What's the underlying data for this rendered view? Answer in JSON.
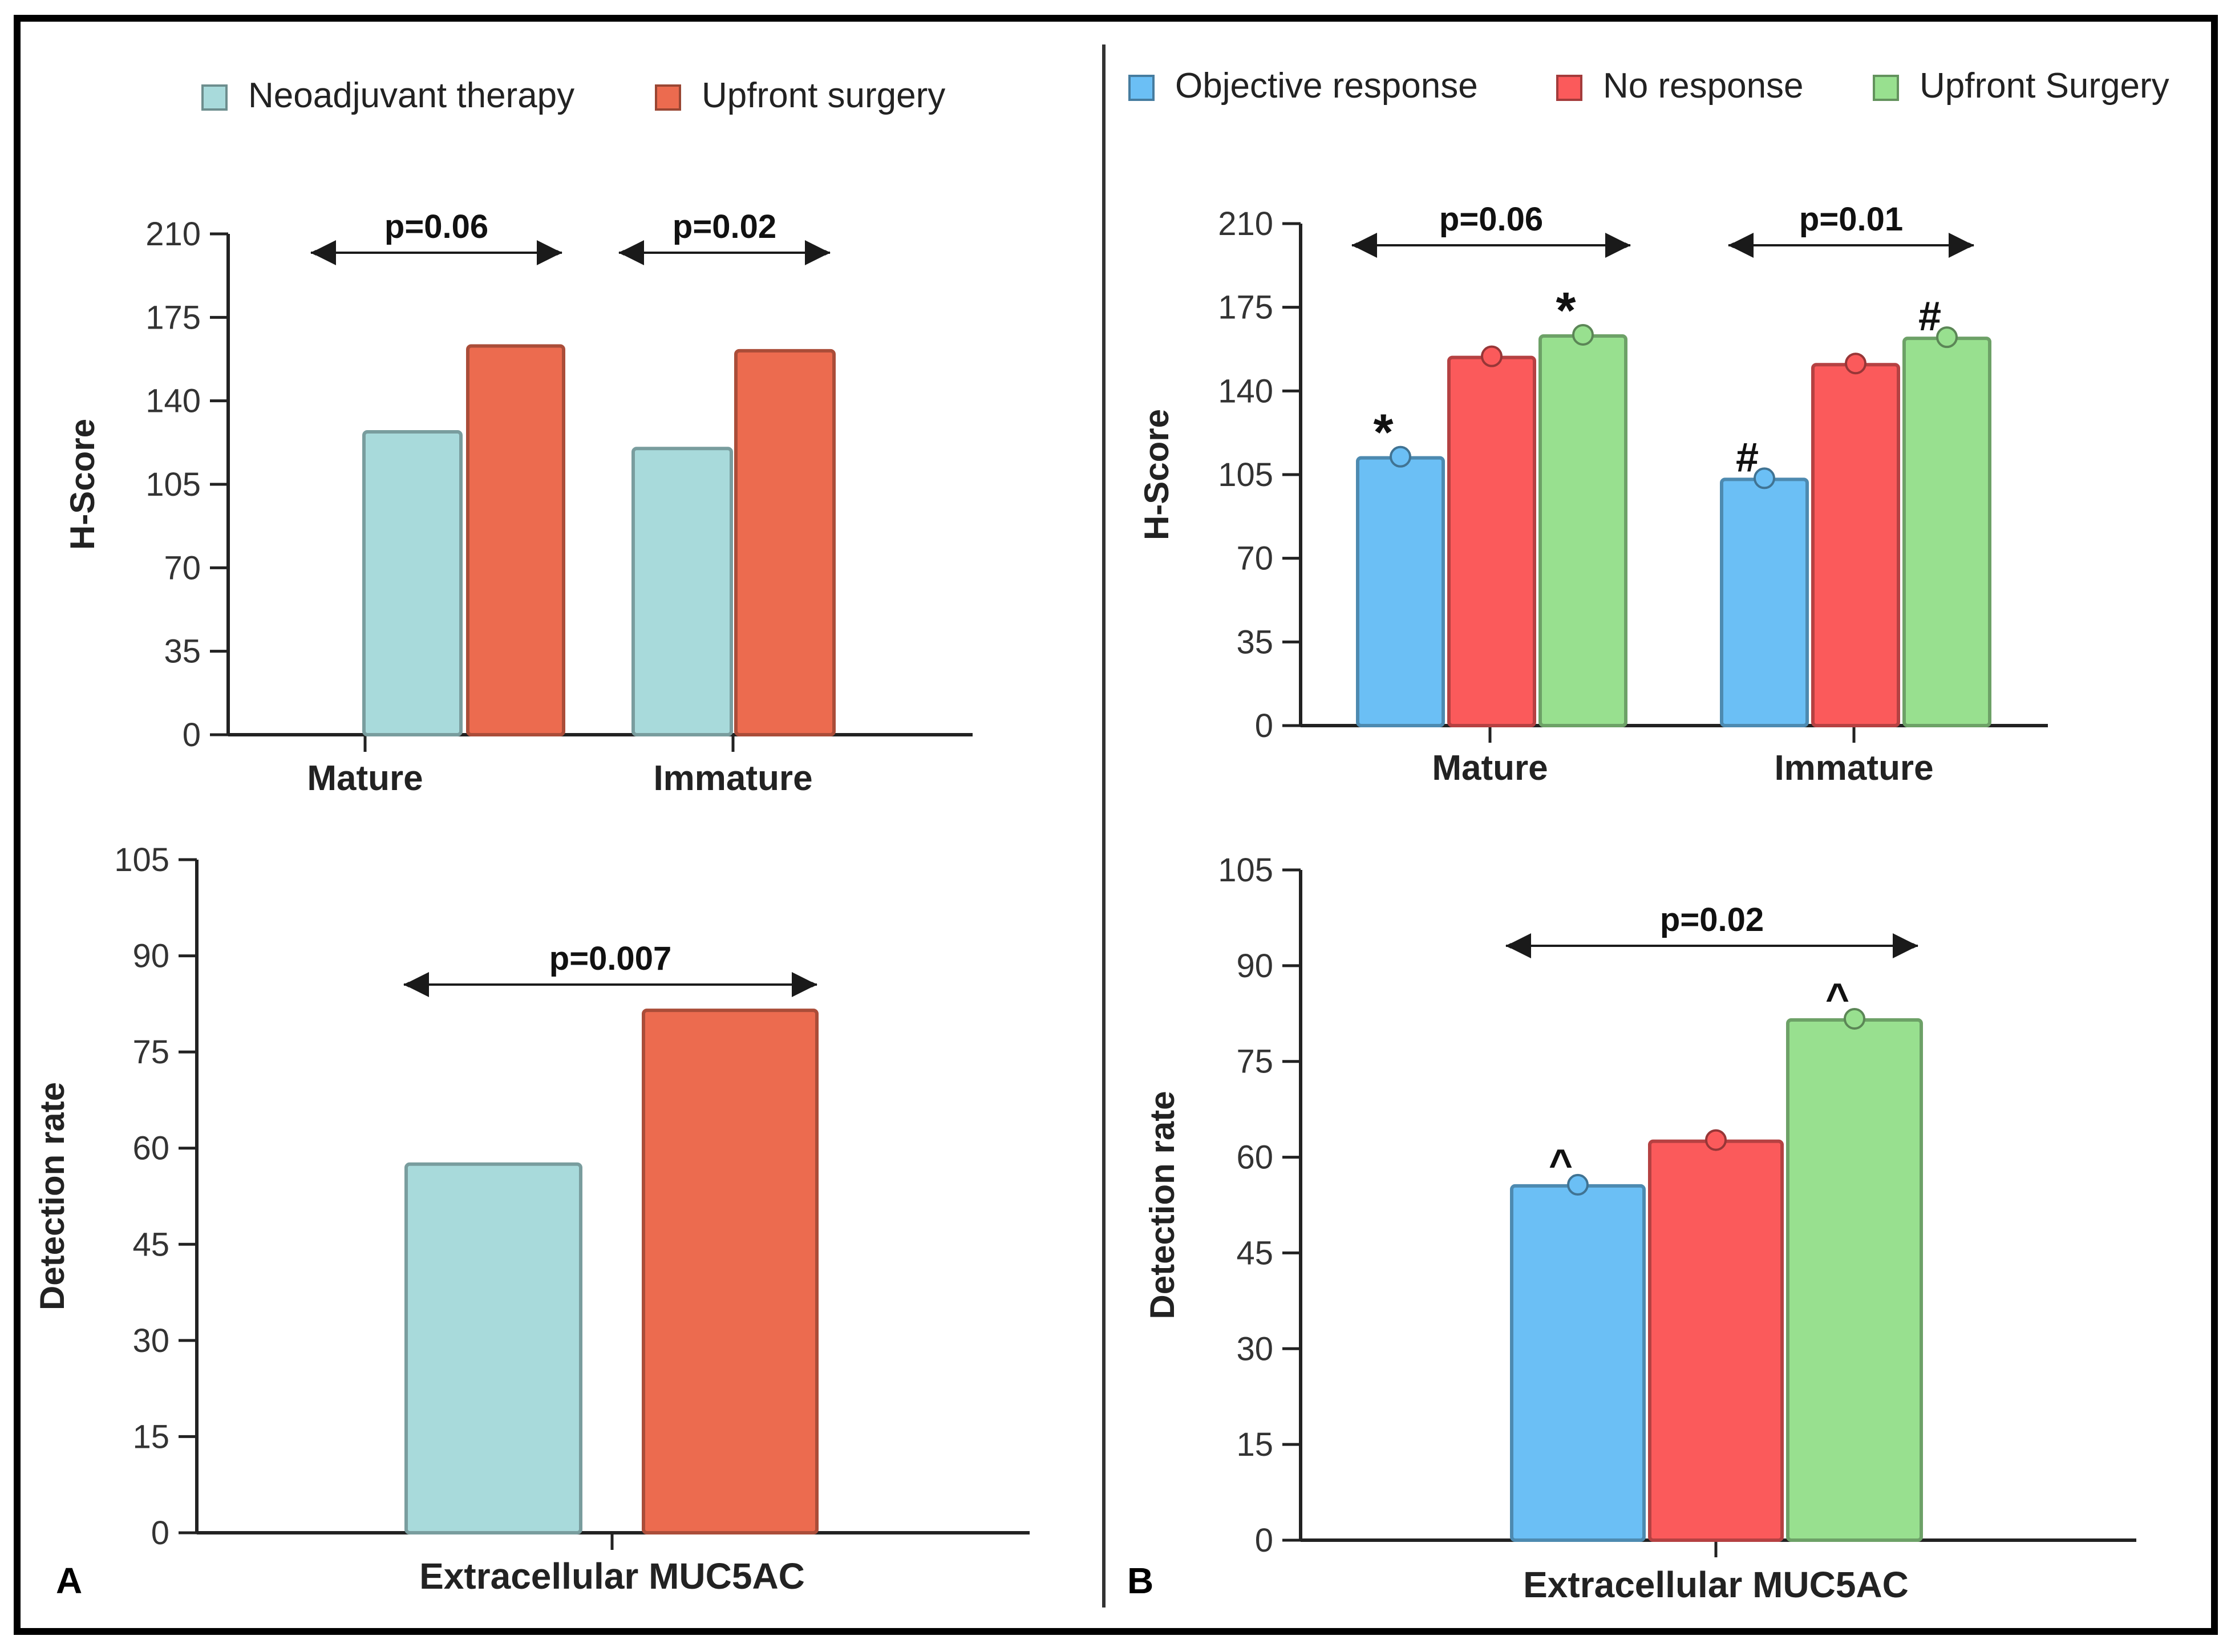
{
  "colors": {
    "neo": "#a8dadb",
    "upfront_a": "#ec6b4f",
    "objective": "#6bbff5",
    "noresp": "#fb5a5b",
    "upfront_b": "#98e08f",
    "frame": "#000000"
  },
  "panel_a": {
    "label": "A",
    "legend": [
      "Neoadjuvant therapy",
      "Upfront surgery"
    ]
  },
  "panel_b": {
    "label": "B",
    "legend": [
      "Objective response",
      "No response",
      "Upfront Surgery"
    ]
  },
  "chart_data": [
    {
      "id": "a_top",
      "type": "bar",
      "title": "",
      "xlabel": "",
      "ylabel": "H-Score",
      "ylim": [
        0,
        210
      ],
      "yticks": [
        0,
        35,
        70,
        105,
        140,
        175,
        210
      ],
      "categories": [
        "Mature",
        "Immature"
      ],
      "series": [
        {
          "name": "Neoadjuvant therapy",
          "values": [
            127,
            120
          ]
        },
        {
          "name": "Upfront surgery",
          "values": [
            163,
            161
          ]
        }
      ],
      "annotations": [
        {
          "text": "p=0.06",
          "category": "Mature"
        },
        {
          "text": "p=0.02",
          "category": "Immature"
        }
      ]
    },
    {
      "id": "a_bottom",
      "type": "bar",
      "title": "",
      "xlabel": "Extracellular MUC5AC",
      "ylabel": "Detection rate",
      "ylim": [
        0,
        105
      ],
      "yticks": [
        0,
        15,
        30,
        45,
        60,
        75,
        90,
        105
      ],
      "categories": [
        "Extracellular MUC5AC"
      ],
      "series": [
        {
          "name": "Neoadjuvant therapy",
          "values": [
            57.5
          ]
        },
        {
          "name": "Upfront surgery",
          "values": [
            81.5
          ]
        }
      ],
      "annotations": [
        {
          "text": "p=0.007",
          "category": "Extracellular MUC5AC"
        }
      ]
    },
    {
      "id": "b_top",
      "type": "bar",
      "title": "",
      "xlabel": "",
      "ylabel": "H-Score",
      "ylim": [
        0,
        210
      ],
      "yticks": [
        0,
        35,
        70,
        105,
        140,
        175,
        210
      ],
      "categories": [
        "Mature",
        "Immature"
      ],
      "series": [
        {
          "name": "Objective response",
          "values": [
            112,
            103
          ],
          "markers": [
            "*",
            "#"
          ]
        },
        {
          "name": "No response",
          "values": [
            154,
            151
          ],
          "markers": [
            "",
            ""
          ]
        },
        {
          "name": "Upfront Surgery",
          "values": [
            163,
            162
          ],
          "markers": [
            "*",
            "#"
          ]
        }
      ],
      "annotations": [
        {
          "text": "p=0.06",
          "category": "Mature"
        },
        {
          "text": "p=0.01",
          "category": "Immature"
        }
      ]
    },
    {
      "id": "b_bottom",
      "type": "bar",
      "title": "",
      "xlabel": "Extracellular MUC5AC",
      "ylabel": "Detection rate",
      "ylim": [
        0,
        105
      ],
      "yticks": [
        0,
        15,
        30,
        45,
        60,
        75,
        90,
        105
      ],
      "categories": [
        "Extracellular MUC5AC"
      ],
      "series": [
        {
          "name": "Objective response",
          "values": [
            55.5
          ],
          "markers": [
            "^"
          ]
        },
        {
          "name": "No response",
          "values": [
            62.5
          ],
          "markers": [
            ""
          ]
        },
        {
          "name": "Upfront Surgery",
          "values": [
            81.5
          ],
          "markers": [
            "^"
          ]
        }
      ],
      "annotations": [
        {
          "text": "p=0.02",
          "category": "Extracellular MUC5AC"
        }
      ]
    }
  ]
}
